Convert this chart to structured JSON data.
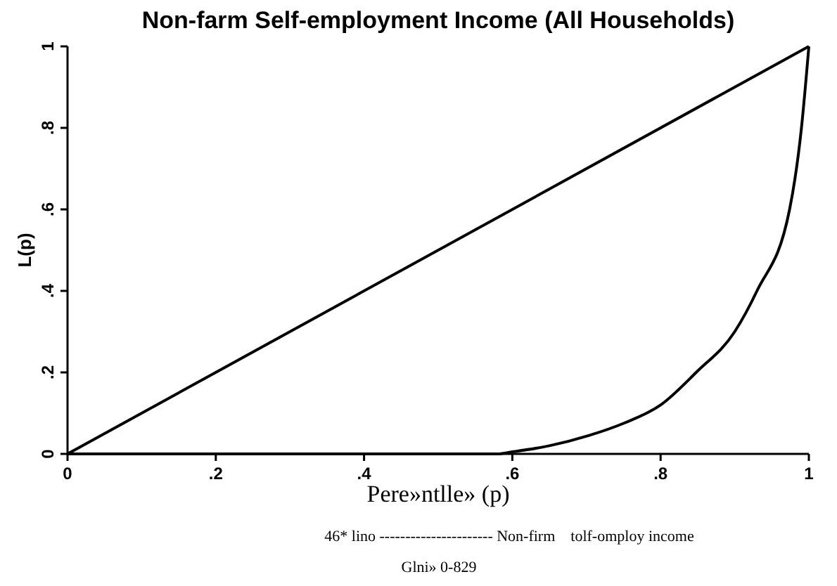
{
  "chart_data": {
    "type": "line",
    "title": "Non-farm Self-employment Income (All Households)",
    "xlabel": "Pere»ntlle» (p)",
    "ylabel": "L(p)",
    "annotations": [
      "46* lino ---------------------- Non-firm    tolf-omploy income",
      "Glni» 0-829"
    ],
    "series": [
      {
        "color": "#000000",
        "x": [
          0,
          1
        ],
        "values": [
          0,
          1
        ]
      },
      {
        "color": "#000000",
        "x": [
          0,
          0.58,
          0.6,
          0.65,
          0.703,
          0.75,
          0.8,
          0.848,
          0.9,
          0.93,
          0.974,
          0.99,
          1
        ],
        "values": [
          0,
          0,
          0.005,
          0.02,
          0.045,
          0.075,
          0.12,
          0.2,
          0.3,
          0.4,
          0.6,
          0.8,
          1
        ]
      }
    ],
    "xlim": [
      0,
      1
    ],
    "ylim": [
      0,
      1
    ],
    "xticks": [
      0,
      {
        "value": 0.2,
        "label": ".2"
      },
      {
        "value": 0.4,
        "label": ".4"
      },
      {
        "value": 0.6,
        "label": ".6"
      },
      {
        "value": 0.8,
        "label": ".8"
      },
      1
    ],
    "yticks": [
      0,
      {
        "value": 0.2,
        "label": ".2"
      },
      {
        "value": 0.4,
        "label": ".4"
      },
      {
        "value": 0.6,
        "label": ".6"
      },
      {
        "value": 0.8,
        "label": ".8"
      },
      1
    ],
    "grid": false,
    "marker": "none",
    "line_style": "solid"
  }
}
